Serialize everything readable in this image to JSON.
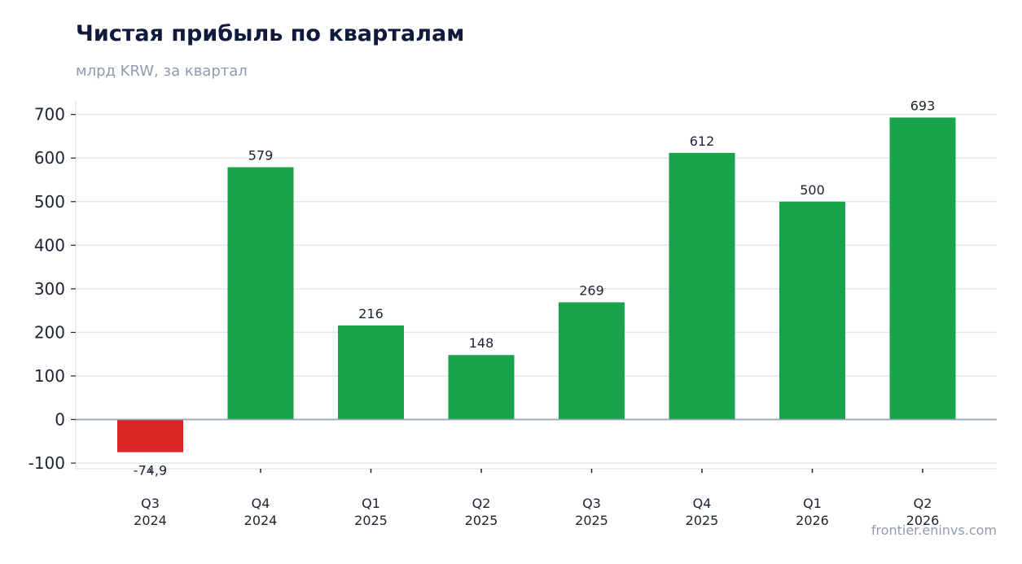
{
  "title": "Чистая прибыль по кварталам",
  "subtitle": "млрд KRW, за квартал",
  "source": "frontier.eninvs.com",
  "colors": {
    "positive": "#19a34a",
    "negative": "#dc2626",
    "grid": "#e2e8f0",
    "zero_line": "#94a3b8"
  },
  "chart_data": {
    "type": "bar",
    "title": "Чистая прибыль по кварталам",
    "subtitle": "млрд KRW, за квартал",
    "categories": [
      [
        "Q3",
        "2024"
      ],
      [
        "Q4",
        "2024"
      ],
      [
        "Q1",
        "2025"
      ],
      [
        "Q2",
        "2025"
      ],
      [
        "Q3",
        "2025"
      ],
      [
        "Q4",
        "2025"
      ],
      [
        "Q1",
        "2026"
      ],
      [
        "Q2",
        "2026"
      ]
    ],
    "values": [
      -74.9,
      579,
      216,
      148,
      269,
      612,
      500,
      693
    ],
    "value_labels": [
      "-74,9",
      "579",
      "216",
      "148",
      "269",
      "612",
      "500",
      "693"
    ],
    "ylim": [
      -113,
      733
    ],
    "yticks": [
      -100,
      0,
      100,
      200,
      300,
      400,
      500,
      600,
      700
    ],
    "grid": true,
    "legend": false
  }
}
